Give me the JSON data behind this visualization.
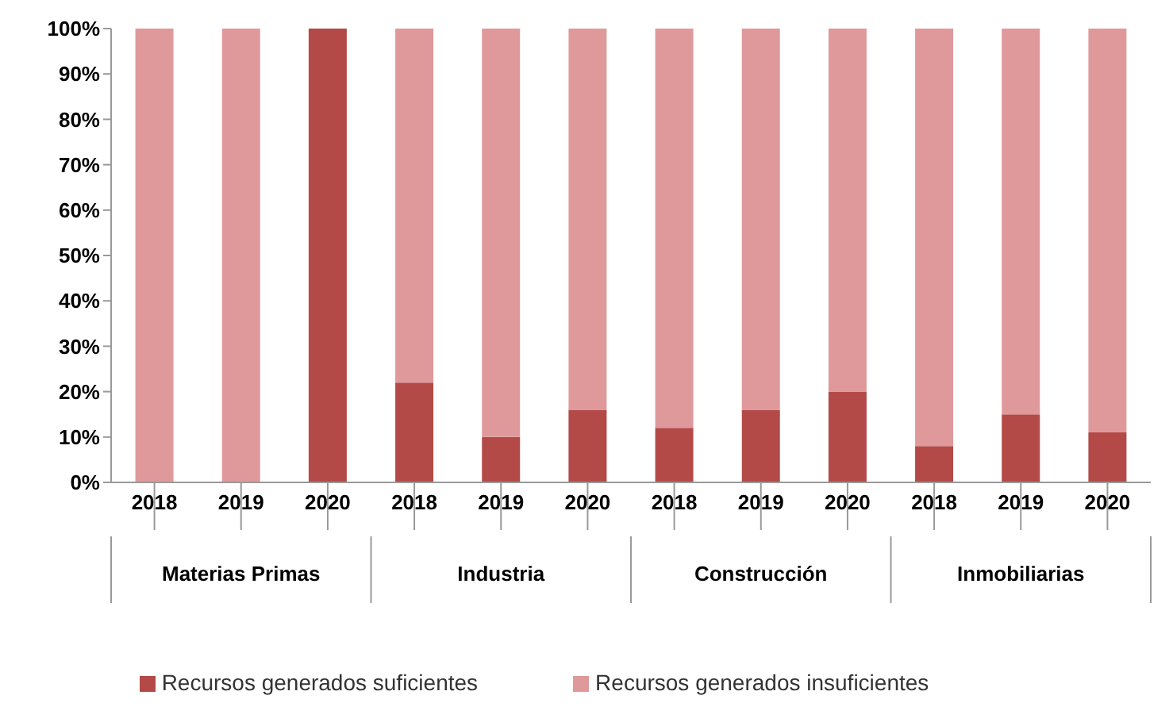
{
  "chart_data": {
    "type": "bar",
    "stacked": true,
    "categories": [
      "2018",
      "2019",
      "2020",
      "2018",
      "2019",
      "2020",
      "2018",
      "2019",
      "2020",
      "2018",
      "2019",
      "2020"
    ],
    "annotations": [
      "Materias Primas",
      "Industria",
      "Construcción",
      "Inmobiliarias"
    ],
    "series": [
      {
        "name": "Recursos generados suficientes",
        "color": "#b34a48",
        "values": [
          0,
          0,
          100,
          22,
          10,
          16,
          12,
          16,
          20,
          8,
          15,
          11
        ]
      },
      {
        "name": "Recursos generados insuficientes",
        "color": "#e0999b",
        "values": [
          100,
          100,
          0,
          78,
          90,
          84,
          88,
          84,
          80,
          92,
          85,
          89
        ]
      }
    ],
    "ylim": [
      0,
      100
    ],
    "yticks": [
      {
        "value": 0,
        "label": "0%"
      },
      {
        "value": 10,
        "label": "10%"
      },
      {
        "value": 20,
        "label": "20%"
      },
      {
        "value": 30,
        "label": "30%"
      },
      {
        "value": 40,
        "label": "40%"
      },
      {
        "value": 50,
        "label": "50%"
      },
      {
        "value": 60,
        "label": "60%"
      },
      {
        "value": 70,
        "label": "70%"
      },
      {
        "value": 80,
        "label": "80%"
      },
      {
        "value": 90,
        "label": "90%"
      },
      {
        "value": 100,
        "label": "100%"
      }
    ],
    "grid": false,
    "legend": "bottom"
  }
}
